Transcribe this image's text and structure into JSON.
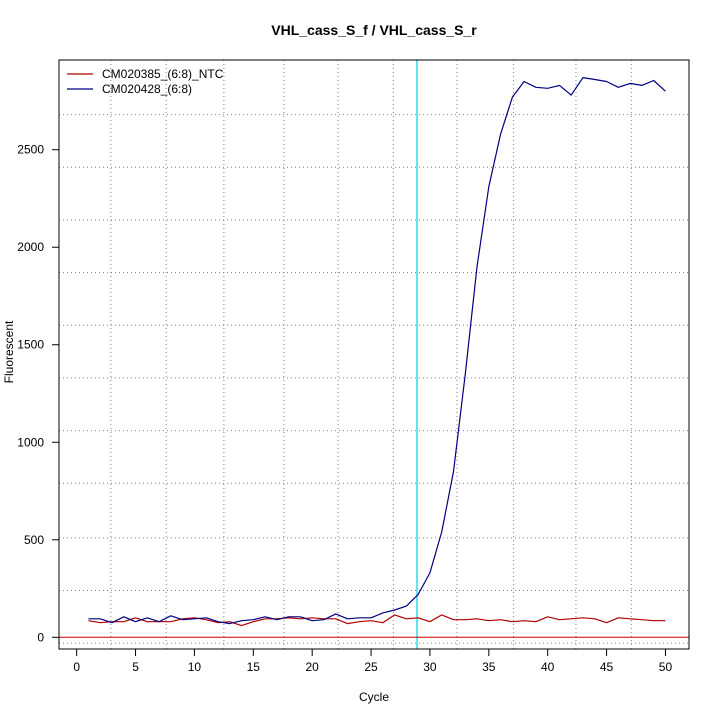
{
  "chart_data": {
    "type": "line",
    "title": "VHL_cass_S_f / VHL_cass_S_r",
    "xlabel": "Cycle",
    "ylabel": "Fluorescent",
    "xlim": [
      -1.5,
      52
    ],
    "ylim": [
      -60,
      2960
    ],
    "x_ticks": [
      0,
      5,
      10,
      15,
      20,
      25,
      30,
      35,
      40,
      45,
      50
    ],
    "y_ticks": [
      0,
      500,
      1000,
      1500,
      2000,
      2500
    ],
    "grid": true,
    "grid_x": [
      2.9,
      7.6,
      12.5,
      17.6,
      22.2,
      26.9,
      32.3,
      37.1,
      42.4,
      47.1
    ],
    "grid_y": [
      -30,
      240,
      510,
      790,
      1060,
      1330,
      1600,
      1870,
      2140,
      2410,
      2680
    ],
    "threshold_cycle": 28.9,
    "baseline_y": 0,
    "legend_position": "top-left",
    "colors": {
      "ntc": "#b00000",
      "sample": "#000080",
      "threshold": "#00d0e8",
      "baseline": "#cc0000",
      "grid": "#808080"
    },
    "series": [
      {
        "name": "CM020385_(6:8)_NTC",
        "color": "#b00000",
        "x": [
          1,
          2,
          3,
          4,
          5,
          6,
          7,
          8,
          9,
          10,
          11,
          12,
          13,
          14,
          15,
          16,
          17,
          18,
          19,
          20,
          21,
          22,
          23,
          24,
          25,
          26,
          27,
          28,
          29,
          30,
          31,
          32,
          33,
          34,
          35,
          36,
          37,
          38,
          39,
          40,
          41,
          42,
          43,
          44,
          45,
          46,
          47,
          48,
          49,
          50
        ],
        "values": [
          85,
          75,
          80,
          80,
          100,
          80,
          80,
          80,
          95,
          100,
          90,
          75,
          80,
          60,
          80,
          95,
          95,
          100,
          95,
          100,
          95,
          95,
          70,
          80,
          85,
          75,
          115,
          95,
          100,
          80,
          115,
          90,
          90,
          95,
          85,
          90,
          80,
          85,
          80,
          105,
          90,
          95,
          100,
          95,
          75,
          100,
          95,
          90,
          85,
          85
        ]
      },
      {
        "name": "CM020428_(6:8)",
        "color": "#000080",
        "x": [
          1,
          2,
          3,
          4,
          5,
          6,
          7,
          8,
          9,
          10,
          11,
          12,
          13,
          14,
          15,
          16,
          17,
          18,
          19,
          20,
          21,
          22,
          23,
          24,
          25,
          26,
          27,
          28,
          29,
          30,
          31,
          32,
          33,
          34,
          35,
          36,
          37,
          38,
          39,
          40,
          41,
          42,
          43,
          44,
          45,
          46,
          47,
          48,
          49,
          50
        ],
        "values": [
          95,
          95,
          75,
          105,
          80,
          100,
          80,
          110,
          90,
          95,
          100,
          80,
          70,
          85,
          90,
          105,
          90,
          105,
          105,
          85,
          90,
          120,
          95,
          100,
          100,
          125,
          140,
          160,
          220,
          330,
          540,
          850,
          1350,
          1900,
          2310,
          2580,
          2770,
          2850,
          2820,
          2815,
          2830,
          2780,
          2870,
          2860,
          2850,
          2820,
          2840,
          2830,
          2855,
          2800
        ]
      }
    ]
  }
}
